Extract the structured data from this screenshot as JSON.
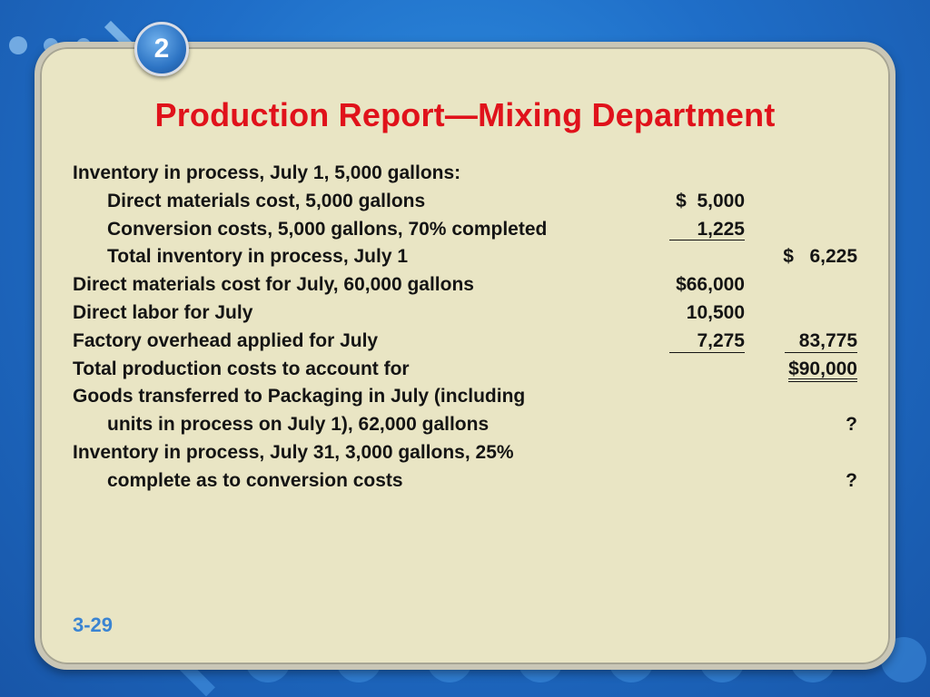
{
  "badge": "2",
  "title": "Production Report—Mixing Department",
  "rows": [
    {
      "label": "Inventory in process, July 1, 5,000 gallons:",
      "c1": "",
      "c2": ""
    },
    {
      "label": "Direct materials cost, 5,000 gallons",
      "c1": "$  5,000",
      "c2": ""
    },
    {
      "label": "Conversion costs, 5,000 gallons, 70% completed",
      "c1": "1,225",
      "c2": ""
    },
    {
      "label": "Total inventory in process, July 1",
      "c1": "",
      "c2": "$   6,225"
    },
    {
      "label": "Direct materials cost for July, 60,000 gallons",
      "c1": "$66,000",
      "c2": ""
    },
    {
      "label": "Direct labor for July",
      "c1": "10,500",
      "c2": ""
    },
    {
      "label": "Factory overhead applied for July",
      "c1": "7,275",
      "c2": "83,775"
    },
    {
      "label": "Total production costs to account for",
      "c1": "",
      "c2": "$90,000"
    },
    {
      "label": "Goods transferred to Packaging in July (including",
      "c1": "",
      "c2": ""
    },
    {
      "label": "units in process on July 1), 62,000 gallons",
      "c1": "",
      "c2": "?"
    },
    {
      "label": "Inventory in process, July 31, 3,000 gallons, 25%",
      "c1": "",
      "c2": ""
    },
    {
      "label": "complete as to conversion costs",
      "c1": "",
      "c2": "?"
    }
  ],
  "page_number": "3-29"
}
